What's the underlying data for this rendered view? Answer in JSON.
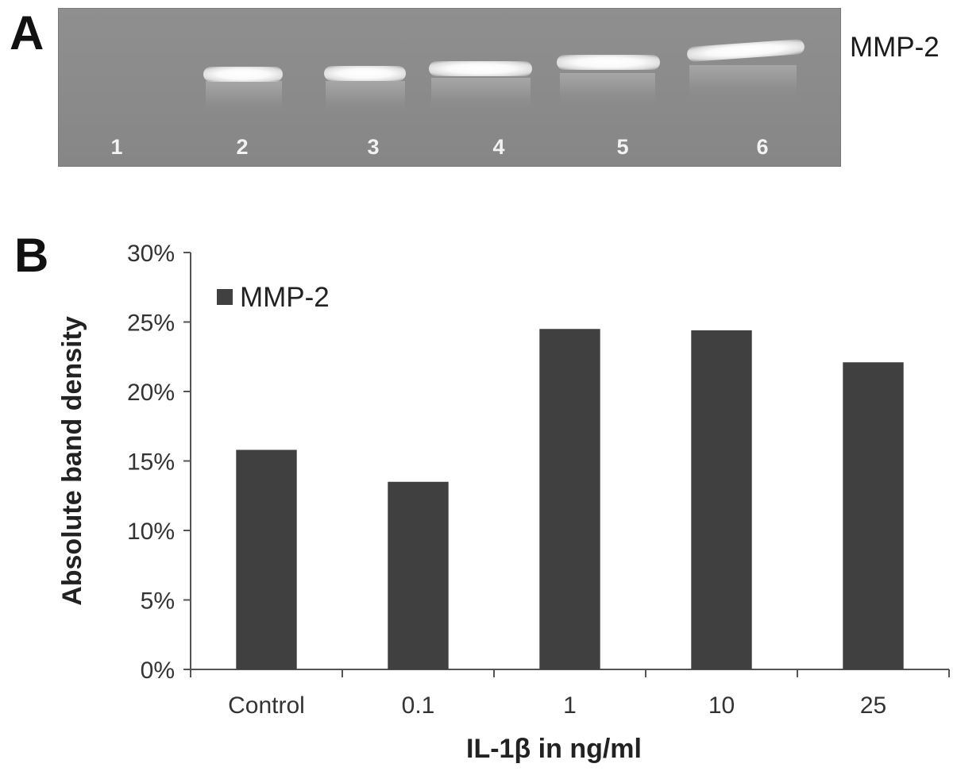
{
  "panel_a": {
    "letter": "A",
    "band_label": "MMP-2",
    "lanes": [
      "1",
      "2",
      "3",
      "4",
      "5",
      "6"
    ]
  },
  "panel_b": {
    "letter": "B"
  },
  "chart_data": {
    "type": "bar",
    "categories": [
      "Control",
      "0.1",
      "1",
      "10",
      "25"
    ],
    "series": [
      {
        "name": "MMP-2",
        "values": [
          15.8,
          13.5,
          24.5,
          24.4,
          22.1
        ],
        "color": "#404040"
      }
    ],
    "xlabel": "IL-1β in ng/ml",
    "ylabel": "Absolute band density",
    "ylim": [
      0,
      30
    ],
    "yticks": [
      0,
      5,
      10,
      15,
      20,
      25,
      30
    ],
    "ytick_labels": [
      "0%",
      "5%",
      "10%",
      "15%",
      "20%",
      "25%",
      "30%"
    ],
    "legend_position": "top-left",
    "grid": false
  }
}
